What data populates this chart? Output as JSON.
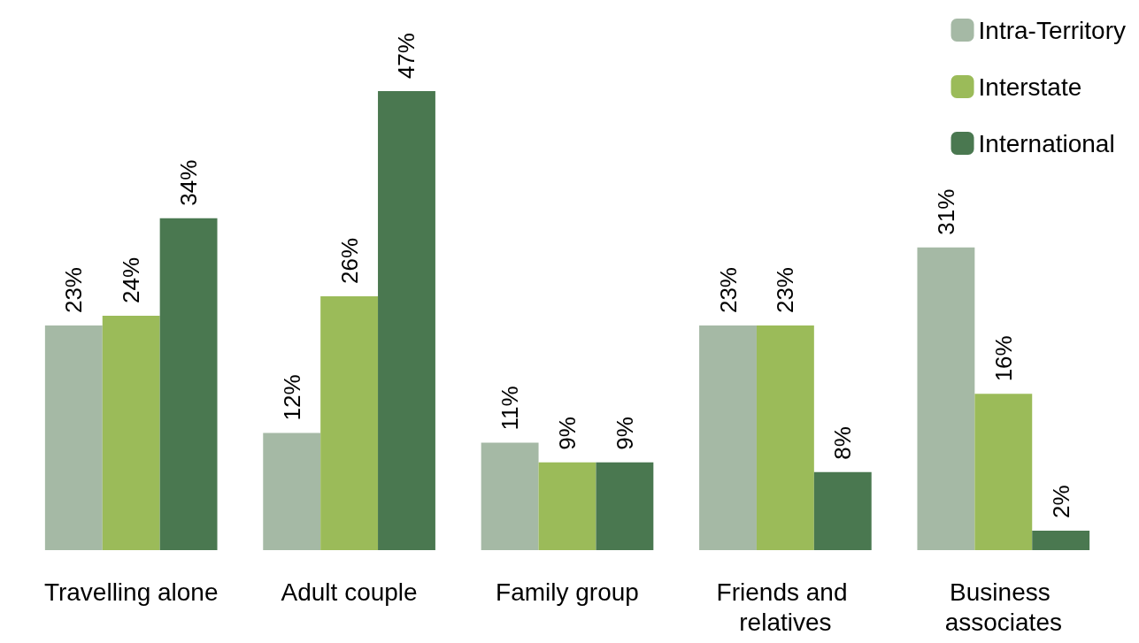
{
  "chart_data": {
    "type": "bar",
    "categories": [
      "Travelling alone",
      "Adult couple",
      "Family group",
      "Friends and relatives",
      "Business associates"
    ],
    "series": [
      {
        "name": "Intra-Territory",
        "color": "#a5b9a5",
        "values": [
          23,
          12,
          11,
          23,
          31
        ],
        "value_labels": [
          "23%",
          "12%",
          "11%",
          "23%",
          "31%"
        ]
      },
      {
        "name": "Interstate",
        "color": "#9bbb59",
        "values": [
          24,
          26,
          9,
          23,
          16
        ],
        "value_labels": [
          "24%",
          "26%",
          "9%",
          "23%",
          "16%"
        ]
      },
      {
        "name": "International",
        "color": "#4a7850",
        "values": [
          34,
          47,
          9,
          8,
          2
        ],
        "value_labels": [
          "34%",
          "47%",
          "9%",
          "8%",
          "2%"
        ]
      }
    ],
    "legend": "top right"
  }
}
